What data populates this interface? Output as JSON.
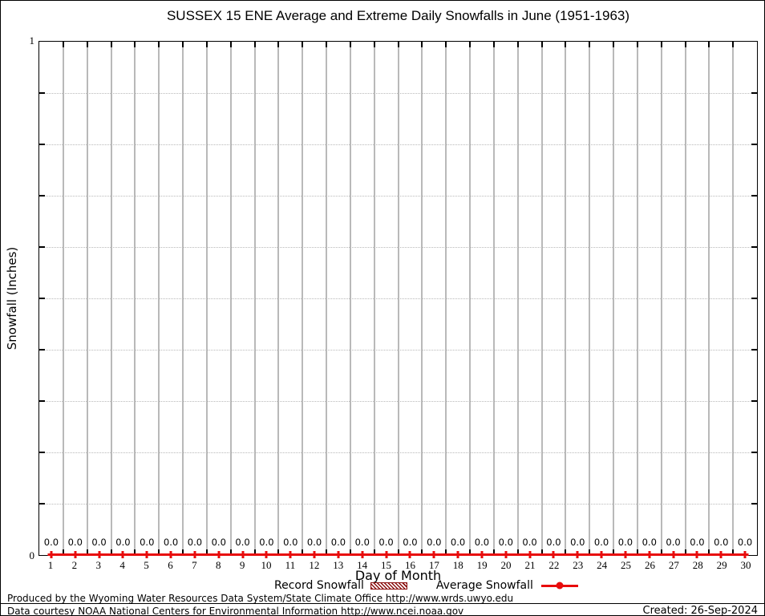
{
  "chart_data": {
    "type": "line",
    "title": "SUSSEX 15 ENE Average and Extreme Daily Snowfalls in June (1951-1963)",
    "xlabel": "Day of Month",
    "ylabel": "Snowfall (Inches)",
    "x": [
      1,
      2,
      3,
      4,
      5,
      6,
      7,
      8,
      9,
      10,
      11,
      12,
      13,
      14,
      15,
      16,
      17,
      18,
      19,
      20,
      21,
      22,
      23,
      24,
      25,
      26,
      27,
      28,
      29,
      30
    ],
    "series": [
      {
        "name": "Record Snowfall",
        "style": "hatched-box",
        "color": "#8b1010",
        "values": [
          0,
          0,
          0,
          0,
          0,
          0,
          0,
          0,
          0,
          0,
          0,
          0,
          0,
          0,
          0,
          0,
          0,
          0,
          0,
          0,
          0,
          0,
          0,
          0,
          0,
          0,
          0,
          0,
          0,
          0
        ]
      },
      {
        "name": "Average Snowfall",
        "style": "line-with-dot-markers",
        "color": "#e80c0c",
        "values": [
          0,
          0,
          0,
          0,
          0,
          0,
          0,
          0,
          0,
          0,
          0,
          0,
          0,
          0,
          0,
          0,
          0,
          0,
          0,
          0,
          0,
          0,
          0,
          0,
          0,
          0,
          0,
          0,
          0,
          0
        ]
      }
    ],
    "point_labels": [
      "0.0",
      "0.0",
      "0.0",
      "0.0",
      "0.0",
      "0.0",
      "0.0",
      "0.0",
      "0.0",
      "0.0",
      "0.0",
      "0.0",
      "0.0",
      "0.0",
      "0.0",
      "0.0",
      "0.0",
      "0.0",
      "0.0",
      "0.0",
      "0.0",
      "0.0",
      "0.0",
      "0.0",
      "0.0",
      "0.0",
      "0.0",
      "0.0",
      "0.0",
      "0.0"
    ],
    "ylim": [
      0,
      1
    ],
    "y_axis_labeled_ticks": [
      "0",
      "1"
    ],
    "y_grid_step": 0.1,
    "grid": "vertical solid gray lines at half-day boundaries; horizontal dotted gray lines every 0.1",
    "legend_position": "below x-axis title"
  },
  "axes": {
    "y_top_label": "1",
    "y_bottom_label": "0"
  },
  "legend": {
    "items": [
      {
        "label": "Record Snowfall"
      },
      {
        "label": "Average Snowfall"
      }
    ]
  },
  "footer": {
    "line1": "Produced by the Wyoming Water Resources Data System/State Climate Office http://www.wrds.uwyo.edu",
    "line2": "Data courtesy NOAA National Centers for Environmental Information http://www.ncei.noaa.gov",
    "created": "Created: 26-Sep-2024"
  },
  "colors": {
    "series_red": "#e80c0c",
    "record_dark_red": "#8b1010",
    "gridline_gray": "#b9b9b9",
    "background": "#ffffff",
    "text": "#000000"
  }
}
